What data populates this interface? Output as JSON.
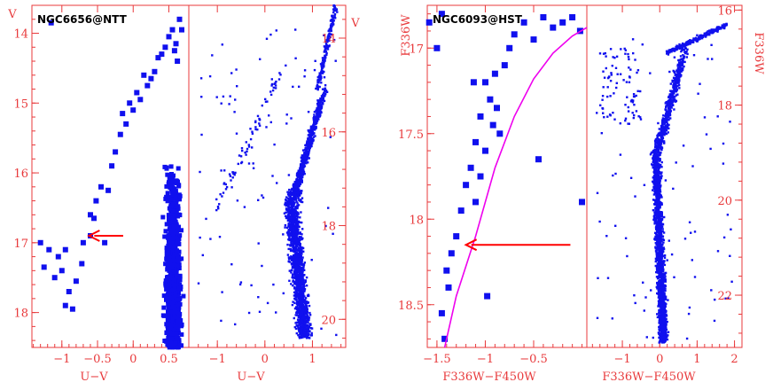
{
  "colors": {
    "axis": "#e8393b",
    "points": "#1010ee",
    "arrow": "#ff0000",
    "curve": "#ee00ee",
    "title": "#000000"
  },
  "chart_data": [
    {
      "type": "scatter",
      "title": "NGC6656@NTT",
      "subplots": [
        {
          "name": "left",
          "xlabel": "U−V",
          "ylabel": "V",
          "xlim": [
            -1.42,
            0.78
          ],
          "ylim": [
            18.5,
            13.6
          ],
          "xticks": [
            -1,
            -0.5,
            0,
            0.5
          ],
          "xtick_labels": [
            "−1",
            "−0.5",
            "0",
            "0.5"
          ],
          "yticks": [
            14,
            15,
            16,
            17,
            18
          ],
          "ytick_labels": [
            "14",
            "15",
            "16",
            "17",
            "18"
          ],
          "vline_x": 0.78,
          "arrow": {
            "from": [
              -0.14,
              16.9
            ],
            "to": [
              -0.62,
              16.9
            ]
          },
          "sequence_points": [
            [
              -1.15,
              13.85
            ],
            [
              -1.3,
              17.0
            ],
            [
              -1.25,
              17.35
            ],
            [
              -1.18,
              17.1
            ],
            [
              -1.1,
              17.5
            ],
            [
              -1.05,
              17.2
            ],
            [
              -0.95,
              17.1
            ],
            [
              -1.0,
              17.4
            ],
            [
              -0.9,
              17.7
            ],
            [
              -0.95,
              17.9
            ],
            [
              -0.85,
              17.95
            ],
            [
              -0.8,
              17.55
            ],
            [
              -0.72,
              17.3
            ],
            [
              -0.7,
              17.0
            ],
            [
              -0.6,
              16.9
            ],
            [
              -0.55,
              16.65
            ],
            [
              -0.52,
              16.4
            ],
            [
              -0.45,
              16.2
            ],
            [
              -0.35,
              16.25
            ],
            [
              -0.4,
              17.0
            ],
            [
              -0.25,
              15.7
            ],
            [
              -0.1,
              15.3
            ],
            [
              0.0,
              15.1
            ],
            [
              0.1,
              14.95
            ],
            [
              0.2,
              14.75
            ],
            [
              0.3,
              14.55
            ],
            [
              0.35,
              14.35
            ],
            [
              0.45,
              14.2
            ],
            [
              0.5,
              14.05
            ],
            [
              0.55,
              13.95
            ],
            [
              0.6,
              14.15
            ],
            [
              0.68,
              13.95
            ],
            [
              -0.15,
              15.15
            ],
            [
              -0.05,
              15.0
            ],
            [
              0.05,
              14.85
            ],
            [
              -0.3,
              15.9
            ],
            [
              0.25,
              14.65
            ],
            [
              0.4,
              14.3
            ],
            [
              0.62,
              14.4
            ],
            [
              0.58,
              14.25
            ],
            [
              -0.6,
              16.6
            ],
            [
              -0.18,
              15.45
            ],
            [
              0.15,
              14.6
            ],
            [
              0.65,
              13.8
            ]
          ],
          "cloud": {
            "x_center": 0.56,
            "x_spread": 0.11,
            "y_range": [
              15.9,
              18.5
            ]
          }
        },
        {
          "name": "right",
          "xlabel": "U−V",
          "ylabel": "V",
          "xlim": [
            -1.6,
            1.7
          ],
          "ylim": [
            20.6,
            13.3
          ],
          "xticks": [
            -1,
            0,
            1
          ],
          "xtick_labels": [
            "−1",
            "0",
            "1"
          ],
          "yticks": [
            14,
            16,
            18,
            20
          ],
          "ytick_labels": [
            "14",
            "16",
            "18",
            "20"
          ],
          "description": "main sequence, subgiant and red giant branch"
        }
      ]
    },
    {
      "type": "scatter",
      "title": "NGC6093@HST",
      "subplots": [
        {
          "name": "left",
          "xlabel": "F336W−F450W",
          "ylabel": "F336W",
          "xlim": [
            -1.6,
            0.05
          ],
          "ylim": [
            18.75,
            16.75
          ],
          "xticks": [
            -1.5,
            -1,
            -0.5
          ],
          "xtick_labels": [
            "−1.5",
            "−1",
            "−0.5"
          ],
          "yticks": [
            17,
            17.5,
            18,
            18.5
          ],
          "ytick_labels": [
            "17",
            "17.5",
            "18",
            "18.5"
          ],
          "vline_x": 0.05,
          "arrow": {
            "from": [
              -0.12,
              18.15
            ],
            "to": [
              -1.2,
              18.15
            ]
          },
          "curve": [
            [
              -1.42,
              18.75
            ],
            [
              -1.3,
              18.45
            ],
            [
              -1.1,
              18.1
            ],
            [
              -0.9,
              17.7
            ],
            [
              -0.7,
              17.4
            ],
            [
              -0.5,
              17.18
            ],
            [
              -0.3,
              17.03
            ],
            [
              -0.1,
              16.93
            ],
            [
              0.05,
              16.88
            ]
          ],
          "sequence_points": [
            [
              -1.58,
              16.85
            ],
            [
              -1.45,
              16.8
            ],
            [
              -1.5,
              17.0
            ],
            [
              -1.4,
              18.3
            ],
            [
              -1.45,
              18.55
            ],
            [
              -1.42,
              18.7
            ],
            [
              -1.38,
              18.4
            ],
            [
              -1.35,
              18.2
            ],
            [
              -1.3,
              18.1
            ],
            [
              -1.25,
              17.95
            ],
            [
              -1.2,
              17.8
            ],
            [
              -1.15,
              17.7
            ],
            [
              -1.1,
              17.55
            ],
            [
              -1.05,
              17.4
            ],
            [
              -1.0,
              17.2
            ],
            [
              -0.95,
              17.3
            ],
            [
              -0.9,
              17.15
            ],
            [
              -0.88,
              17.35
            ],
            [
              -0.85,
              17.5
            ],
            [
              -0.8,
              17.1
            ],
            [
              -0.75,
              17.0
            ],
            [
              -0.7,
              16.92
            ],
            [
              -0.6,
              16.85
            ],
            [
              -0.5,
              16.95
            ],
            [
              -0.4,
              16.82
            ],
            [
              -0.3,
              16.88
            ],
            [
              -0.2,
              16.85
            ],
            [
              -0.1,
              16.82
            ],
            [
              -0.02,
              16.9
            ],
            [
              -1.05,
              17.75
            ],
            [
              -1.1,
              17.9
            ],
            [
              -1.0,
              17.6
            ],
            [
              -0.98,
              18.45
            ],
            [
              -0.45,
              17.65
            ],
            [
              0.0,
              17.9
            ],
            [
              -0.92,
              17.45
            ],
            [
              -1.12,
              17.2
            ]
          ]
        },
        {
          "name": "right",
          "xlabel": "F336W−F450W",
          "ylabel": "F336W",
          "xlim": [
            -1.95,
            2.2
          ],
          "ylim": [
            23.1,
            15.9
          ],
          "xticks": [
            -1,
            0,
            1,
            2
          ],
          "xtick_labels": [
            "−1",
            "0",
            "1",
            "2"
          ],
          "yticks": [
            16,
            18,
            20,
            22
          ],
          "ytick_labels": [
            "16",
            "18",
            "20",
            "22"
          ],
          "description": "main sequence, subgiant and red giant branch"
        }
      ]
    }
  ]
}
